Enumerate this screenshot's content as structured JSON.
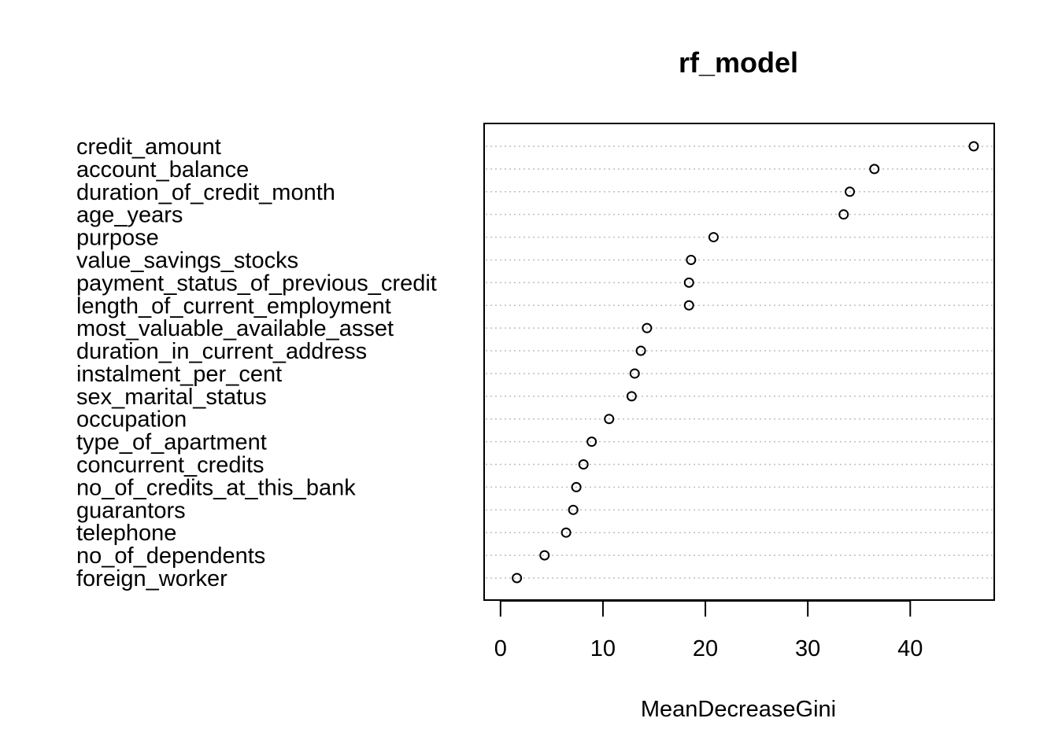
{
  "chart_data": {
    "type": "scatter",
    "subtype": "dotchart",
    "title": "rf_model",
    "xlabel": "MeanDecreaseGini",
    "ylabel": "",
    "xlim": [
      -1.6,
      48.2
    ],
    "xticks": [
      0,
      10,
      20,
      30,
      40
    ],
    "grid": "dotted horizontal lines per category",
    "legend": "none",
    "categories": [
      "credit_amount",
      "account_balance",
      "duration_of_credit_month",
      "age_years",
      "purpose",
      "value_savings_stocks",
      "payment_status_of_previous_credit",
      "length_of_current_employment",
      "most_valuable_available_asset",
      "duration_in_current_address",
      "instalment_per_cent",
      "sex_marital_status",
      "occupation",
      "type_of_apartment",
      "concurrent_credits",
      "no_of_credits_at_this_bank",
      "guarantors",
      "telephone",
      "no_of_dependents",
      "foreign_worker"
    ],
    "values": [
      46.2,
      36.5,
      34.1,
      33.5,
      20.8,
      18.6,
      18.4,
      18.4,
      14.3,
      13.7,
      13.1,
      12.8,
      10.6,
      8.9,
      8.1,
      7.4,
      7.1,
      6.4,
      4.3,
      1.6
    ]
  },
  "colors": {
    "point_stroke": "#000000",
    "grid": "#bebebe",
    "frame": "#000000"
  }
}
